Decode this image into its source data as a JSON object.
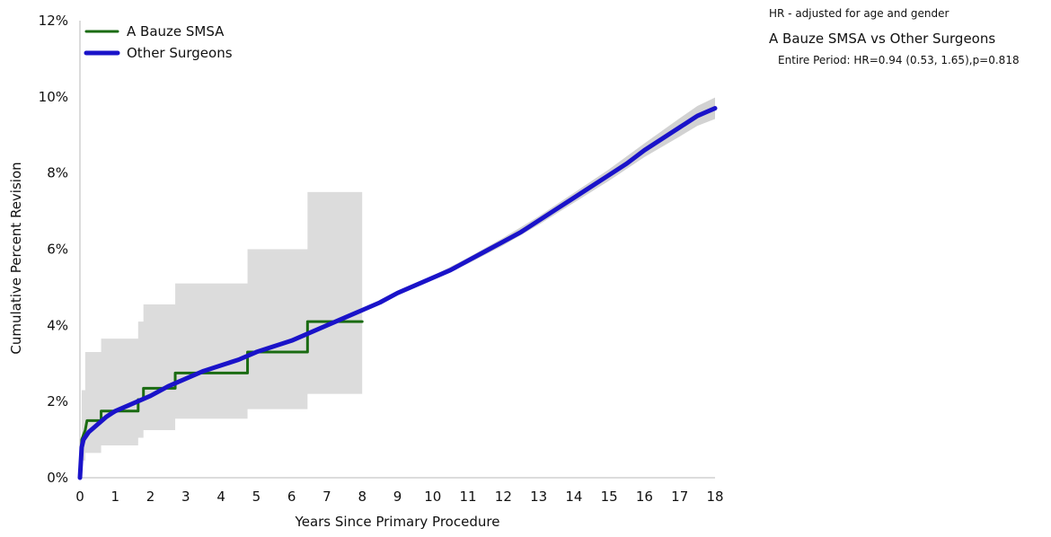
{
  "stats": {
    "note": "HR - adjusted for age and gender",
    "comparison_title": "A Bauze SMSA vs Other Surgeons",
    "entire_period": "Entire Period: HR=0.94 (0.53, 1.65),p=0.818"
  },
  "chart_data": {
    "type": "line",
    "title": "",
    "xlabel": "Years Since Primary Procedure",
    "ylabel": "Cumulative Percent Revision",
    "xlim": [
      0,
      18
    ],
    "ylim": [
      0,
      12
    ],
    "x_ticks": [
      0,
      1,
      2,
      3,
      4,
      5,
      6,
      7,
      8,
      9,
      10,
      11,
      12,
      13,
      14,
      15,
      16,
      17,
      18
    ],
    "y_ticks": [
      0,
      2,
      4,
      6,
      8,
      10,
      12
    ],
    "y_tick_labels": [
      "0%",
      "2%",
      "4%",
      "6%",
      "8%",
      "10%",
      "12%"
    ],
    "grid": false,
    "legend_position": "top-left",
    "series": [
      {
        "name": "A Bauze SMSA",
        "color": "#1a6b12",
        "line_shape": "step",
        "points": [
          [
            0,
            0
          ],
          [
            0.05,
            1.0
          ],
          [
            0.15,
            1.25
          ],
          [
            0.2,
            1.5
          ],
          [
            0.6,
            1.5
          ],
          [
            0.6,
            1.75
          ],
          [
            1.65,
            1.75
          ],
          [
            1.65,
            2.05
          ],
          [
            1.8,
            2.05
          ],
          [
            1.8,
            2.35
          ],
          [
            2.7,
            2.35
          ],
          [
            2.7,
            2.75
          ],
          [
            4.75,
            2.75
          ],
          [
            4.75,
            3.3
          ],
          [
            6.45,
            3.3
          ],
          [
            6.45,
            4.1
          ],
          [
            8.0,
            4.1
          ]
        ],
        "ci_band": {
          "color": "#dcdcdc",
          "points": [
            [
              0.05,
              0.45,
              2.3
            ],
            [
              0.15,
              0.65,
              3.3
            ],
            [
              0.6,
              0.85,
              3.65
            ],
            [
              1.65,
              1.05,
              4.1
            ],
            [
              1.8,
              1.25,
              4.55
            ],
            [
              2.7,
              1.55,
              5.1
            ],
            [
              4.75,
              1.8,
              6.0
            ],
            [
              6.45,
              2.2,
              7.5
            ],
            [
              8.0,
              2.2,
              7.5
            ]
          ]
        }
      },
      {
        "name": "Other Surgeons",
        "color": "#1a13c9",
        "line_shape": "smooth",
        "points": [
          [
            0,
            0
          ],
          [
            0.05,
            0.8
          ],
          [
            0.1,
            1.0
          ],
          [
            0.25,
            1.2
          ],
          [
            0.5,
            1.4
          ],
          [
            0.75,
            1.6
          ],
          [
            1.0,
            1.75
          ],
          [
            1.5,
            1.95
          ],
          [
            2.0,
            2.15
          ],
          [
            2.5,
            2.4
          ],
          [
            3.0,
            2.6
          ],
          [
            3.5,
            2.8
          ],
          [
            4.0,
            2.95
          ],
          [
            4.5,
            3.1
          ],
          [
            5.0,
            3.3
          ],
          [
            5.5,
            3.45
          ],
          [
            6.0,
            3.6
          ],
          [
            6.5,
            3.8
          ],
          [
            7.0,
            4.0
          ],
          [
            7.5,
            4.2
          ],
          [
            8.0,
            4.4
          ],
          [
            8.5,
            4.6
          ],
          [
            9.0,
            4.85
          ],
          [
            9.5,
            5.05
          ],
          [
            10.0,
            5.25
          ],
          [
            10.5,
            5.45
          ],
          [
            11.0,
            5.7
          ],
          [
            11.5,
            5.95
          ],
          [
            12.0,
            6.2
          ],
          [
            12.5,
            6.45
          ],
          [
            13.0,
            6.75
          ],
          [
            13.5,
            7.05
          ],
          [
            14.0,
            7.35
          ],
          [
            14.5,
            7.65
          ],
          [
            15.0,
            7.95
          ],
          [
            15.5,
            8.25
          ],
          [
            16.0,
            8.6
          ],
          [
            16.5,
            8.9
          ],
          [
            17.0,
            9.2
          ],
          [
            17.5,
            9.5
          ],
          [
            18.0,
            9.7
          ]
        ],
        "ci_band": {
          "color": "#d2d2d2",
          "points": [
            [
              10.0,
              5.2,
              5.3
            ],
            [
              11.0,
              5.62,
              5.78
            ],
            [
              12.0,
              6.1,
              6.3
            ],
            [
              13.0,
              6.64,
              6.86
            ],
            [
              14.0,
              7.22,
              7.48
            ],
            [
              15.0,
              7.8,
              8.1
            ],
            [
              16.0,
              8.42,
              8.78
            ],
            [
              17.0,
              8.96,
              9.44
            ],
            [
              17.5,
              9.24,
              9.76
            ],
            [
              18.0,
              9.42,
              9.98
            ]
          ]
        }
      }
    ]
  }
}
